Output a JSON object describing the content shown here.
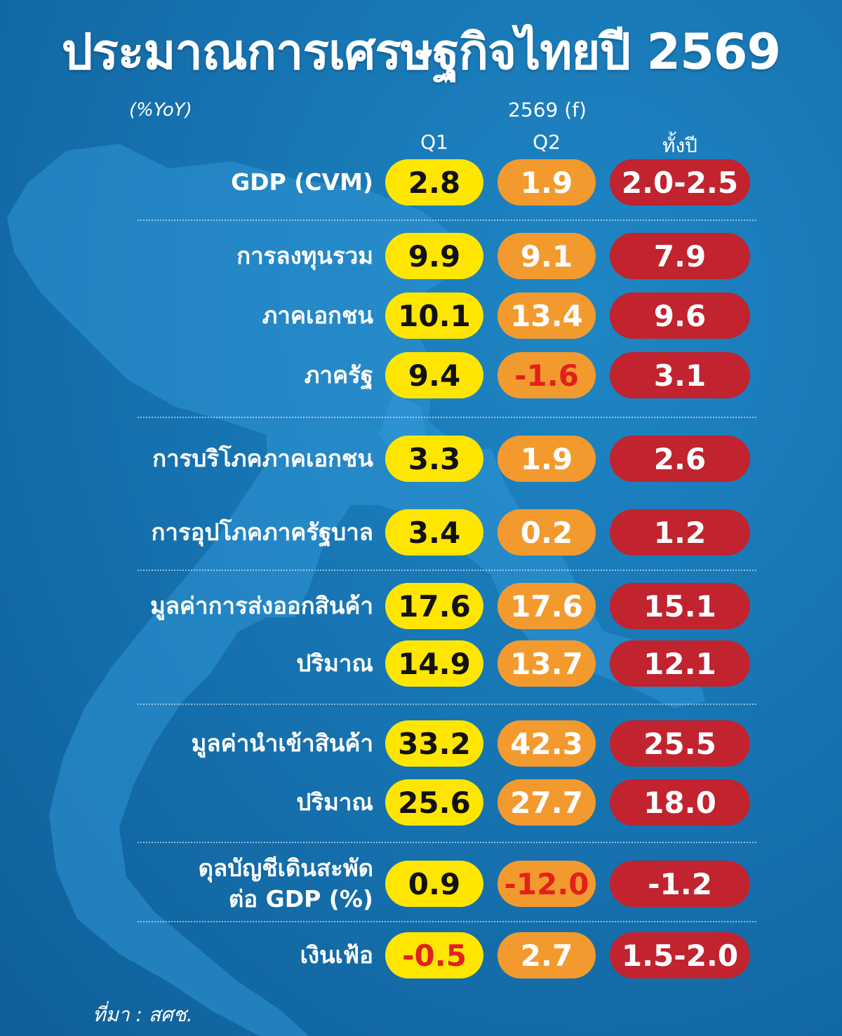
{
  "title": "ประมาณการเศรษฐกิจไทยปี 2569",
  "units": "(%YoY)",
  "source": "ที่มา : สศช.",
  "colors": {
    "q1": "#ffe600",
    "q2": "#f39a2e",
    "full_year": "#c1232f",
    "negative_text": "#e3201b",
    "background": "#1774b2"
  },
  "chart_data": {
    "type": "table",
    "period_header": "2569 (f)",
    "columns": [
      "Q1",
      "Q2",
      "ทั้งปี"
    ],
    "rows": [
      {
        "label": "GDP (CVM)",
        "values": [
          "2.8",
          "1.9",
          "2.0-2.5"
        ]
      },
      {
        "label": "การลงทุนรวม",
        "values": [
          "9.9",
          "9.1",
          "7.9"
        ]
      },
      {
        "label": "ภาคเอกชน",
        "values": [
          "10.1",
          "13.4",
          "9.6"
        ]
      },
      {
        "label": "ภาครัฐ",
        "values": [
          "9.4",
          "-1.6",
          "3.1"
        ]
      },
      {
        "label": "การบริโภคภาคเอกชน",
        "values": [
          "3.3",
          "1.9",
          "2.6"
        ]
      },
      {
        "label": "การอุปโภคภาครัฐบาล",
        "values": [
          "3.4",
          "0.2",
          "1.2"
        ]
      },
      {
        "label": "มูลค่าการส่งออกสินค้า",
        "values": [
          "17.6",
          "17.6",
          "15.1"
        ]
      },
      {
        "label": "ปริมาณ",
        "values": [
          "14.9",
          "13.7",
          "12.1"
        ]
      },
      {
        "label": "มูลค่านำเข้าสินค้า",
        "values": [
          "33.2",
          "42.3",
          "25.5"
        ]
      },
      {
        "label": "ปริมาณ",
        "values": [
          "25.6",
          "27.7",
          "18.0"
        ]
      },
      {
        "label": "ดุลบัญชีเดินสะพัด",
        "label2": "ต่อ GDP (%)",
        "values": [
          "0.9",
          "-12.0",
          "-1.2"
        ]
      },
      {
        "label": "เงินเฟ้อ",
        "values": [
          "-0.5",
          "2.7",
          "1.5-2.0"
        ]
      }
    ]
  }
}
